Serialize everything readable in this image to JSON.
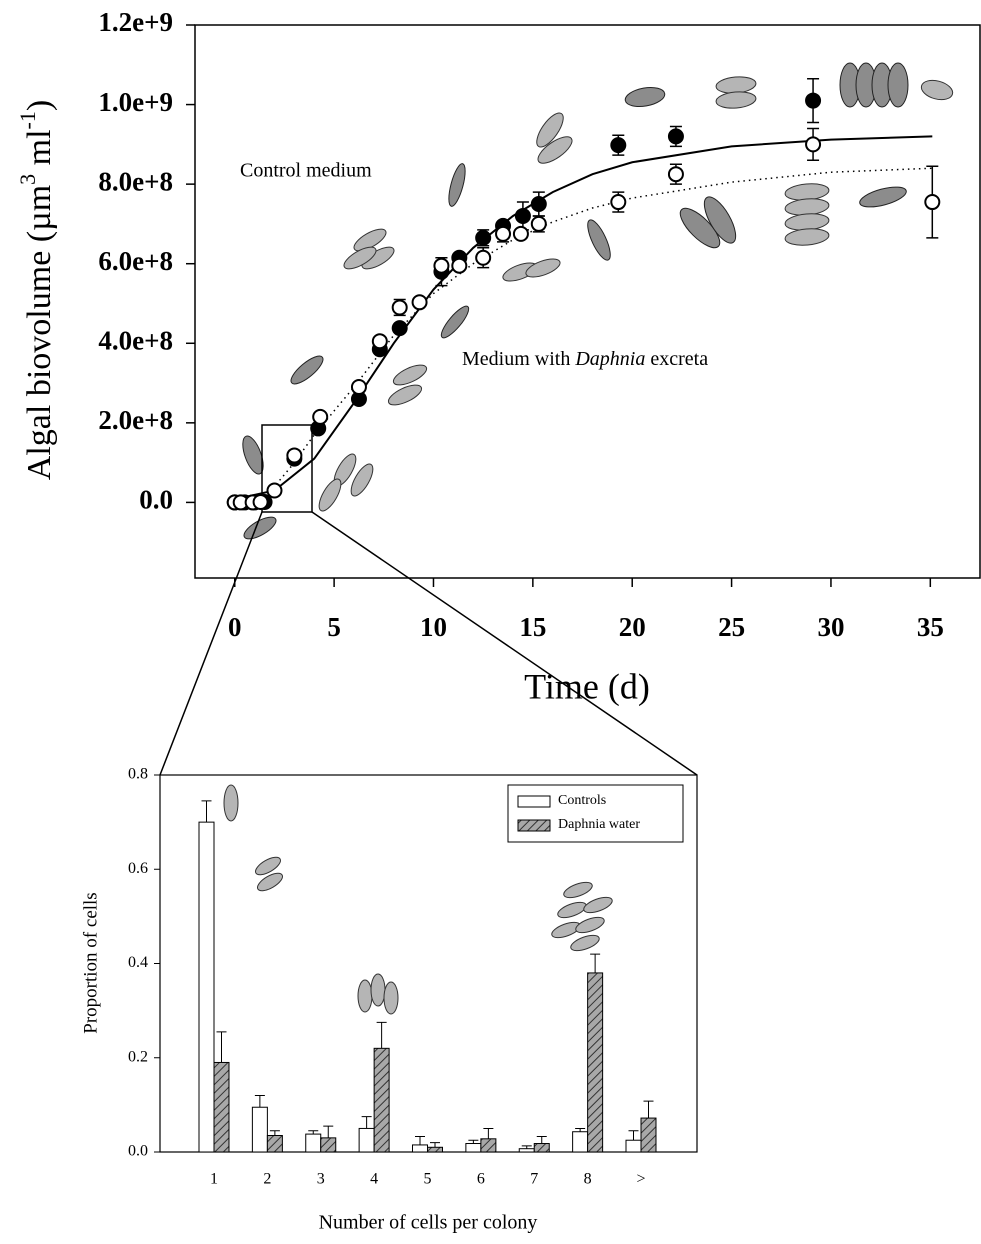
{
  "chart_data": [
    {
      "type": "scatter",
      "x_label": "Time (d)",
      "y_label": [
        "Algal biovolume (µm",
        "3",
        " ml",
        "-1",
        ")"
      ],
      "annotations": [
        "Control medium",
        [
          "Medium with ",
          "Daphnia",
          " excreta"
        ]
      ],
      "xlim": [
        -2,
        37.5
      ],
      "xticks": [
        0,
        5,
        10,
        15,
        20,
        25,
        30,
        35
      ],
      "ylim": [
        -190000000,
        1200000000
      ],
      "yticks": [
        {
          "value": 0,
          "label": "0.0"
        },
        {
          "value": 200000000,
          "label": "2.0e+8"
        },
        {
          "value": 400000000,
          "label": "4.0e+8"
        },
        {
          "value": 600000000,
          "label": "6.0e+8"
        },
        {
          "value": 800000000,
          "label": "8.0e+8"
        },
        {
          "value": 1000000000,
          "label": "1.0e+9"
        },
        {
          "value": 1200000000,
          "label": "1.2e+9"
        }
      ],
      "series": [
        {
          "marker": "filled",
          "color": "#000000",
          "x": [
            0,
            0.5,
            1,
            1.5,
            3,
            4.2,
            6.25,
            7.3,
            8.3,
            10.4,
            11.3,
            12.5,
            13.5,
            14.5,
            15.3,
            19.3,
            22.2,
            29.1
          ],
          "values": [
            0,
            0,
            0,
            1000000,
            110000000,
            186000000,
            260000000,
            385000000,
            438000000,
            580000000,
            615000000,
            665000000,
            695000000,
            720000000,
            750000000,
            898000000,
            920000000,
            1010000000
          ],
          "errors": [
            null,
            null,
            null,
            null,
            null,
            null,
            null,
            null,
            null,
            35000000,
            null,
            20000000,
            null,
            35000000,
            30000000,
            25000000,
            25000000,
            55000000
          ]
        },
        {
          "marker": "open",
          "color": "#000000",
          "x": [
            0,
            0.3,
            0.9,
            1.3,
            2,
            3,
            4.3,
            6.25,
            7.3,
            8.3,
            9.3,
            10.4,
            11.3,
            12.5,
            13.5,
            14.4,
            15.3,
            19.3,
            22.2,
            29.1,
            35.1
          ],
          "values": [
            0,
            0,
            0,
            1000000,
            30000000,
            118000000,
            215000000,
            290000000,
            405000000,
            490000000,
            503000000,
            595000000,
            595000000,
            615000000,
            675000000,
            675000000,
            700000000,
            755000000,
            825000000,
            900000000,
            755000000
          ],
          "errors": [
            null,
            null,
            null,
            null,
            null,
            null,
            null,
            null,
            null,
            20000000,
            null,
            20000000,
            null,
            25000000,
            20000000,
            null,
            20000000,
            25000000,
            25000000,
            40000000,
            90000000
          ]
        }
      ],
      "fits": [
        {
          "dash": "solid",
          "x": [
            0,
            2,
            4,
            5,
            6,
            8,
            10,
            12,
            14,
            16,
            18,
            20,
            25,
            30,
            35.1
          ],
          "values": [
            8000000,
            30000000,
            110000000,
            180000000,
            250000000,
            400000000,
            535000000,
            640000000,
            720000000,
            780000000,
            825000000,
            855000000,
            895000000,
            912000000,
            920000000
          ]
        },
        {
          "dash": "dotted",
          "x": [
            1,
            2,
            3,
            4,
            6,
            8,
            10,
            12,
            14,
            16,
            18,
            20,
            25,
            30,
            35.1
          ],
          "values": [
            2000000,
            40000000,
            100000000,
            170000000,
            290000000,
            420000000,
            525000000,
            600000000,
            660000000,
            705000000,
            740000000,
            765000000,
            805000000,
            830000000,
            840000000
          ]
        }
      ]
    },
    {
      "type": "bar",
      "x_label": "Number of cells per colony",
      "y_label": "Proportion of cells",
      "categories": [
        "1",
        "2",
        "3",
        "4",
        "5",
        "6",
        "7",
        "8",
        ">"
      ],
      "ylim": [
        0,
        0.8
      ],
      "yticks": [
        {
          "value": 0,
          "label": "0.0"
        },
        0.2,
        0.4,
        0.6,
        0.8
      ],
      "legend": "upper right",
      "series": [
        {
          "name": "Controls",
          "color": "#ffffff",
          "hatch": false,
          "values": [
            0.7,
            0.095,
            0.038,
            0.05,
            0.015,
            0.018,
            0.007,
            0.043,
            0.025
          ],
          "errors": [
            0.045,
            0.025,
            0.007,
            0.025,
            0.018,
            0.007,
            0.006,
            0.007,
            0.02
          ]
        },
        {
          "name": "Daphnia water",
          "color": "#a8a8a8",
          "hatch": true,
          "values": [
            0.19,
            0.035,
            0.03,
            0.22,
            0.01,
            0.028,
            0.018,
            0.38,
            0.072
          ],
          "errors": [
            0.065,
            0.01,
            0.025,
            0.055,
            0.01,
            0.022,
            0.015,
            0.04,
            0.036
          ]
        }
      ]
    }
  ]
}
